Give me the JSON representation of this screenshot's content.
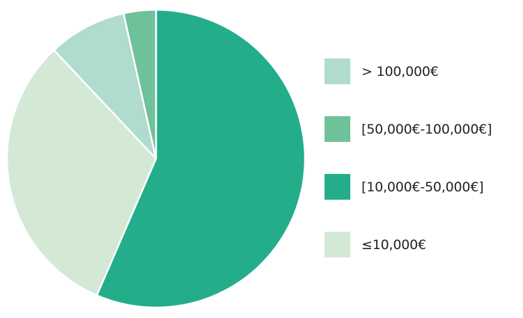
{
  "chart_data": {
    "type": "pie",
    "title": "",
    "start_angle_deg": 0,
    "direction": "clockwise",
    "categories": [
      "[10,000€-50,000€]",
      "≤10,000€",
      "> 100,000€",
      "[50,000€-100,000€]"
    ],
    "values": [
      56.5,
      31.5,
      8.5,
      3.5
    ],
    "colors": [
      "#24ad8a",
      "#d3e9d6",
      "#b0dbcf",
      "#6fc19a"
    ],
    "legend": {
      "placement": "right",
      "entries": [
        {
          "label": "> 100,000€",
          "color": "#b0dbcf"
        },
        {
          "label": "[50,000€-100,000€]",
          "color": "#6fc19a"
        },
        {
          "label": "[10,000€-50,000€]",
          "color": "#24ad8a"
        },
        {
          "label": "≤10,000€",
          "color": "#d3e9d6"
        }
      ]
    }
  }
}
